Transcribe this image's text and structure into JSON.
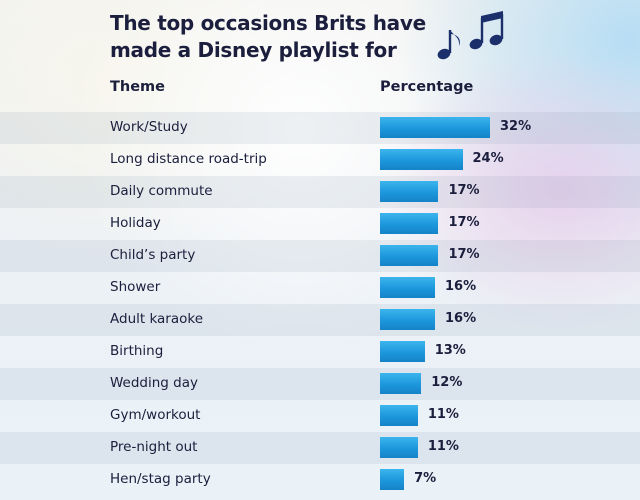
{
  "header": {
    "title_line1": "The top occasions Brits have",
    "title_line2": "made a Disney playlist for",
    "col_theme": "Theme",
    "col_percentage": "Percentage",
    "decoration_icon": "music-notes-icon"
  },
  "colors": {
    "bar": "#1d97dc",
    "text": "#1b1e3c",
    "note": "#1b2f6b"
  },
  "chart_data": {
    "type": "bar",
    "orientation": "horizontal",
    "title": "The top occasions Brits have made a Disney playlist for",
    "xlabel": "Percentage",
    "ylabel": "Theme",
    "categories": [
      "Work/Study",
      "Long distance road-trip",
      "Daily commute",
      "Holiday",
      "Child’s party",
      "Shower",
      "Adult karaoke",
      "Birthing",
      "Wedding day",
      "Gym/workout",
      "Pre-night out",
      "Hen/stag party"
    ],
    "values": [
      32,
      24,
      17,
      17,
      17,
      16,
      16,
      13,
      12,
      11,
      11,
      7
    ],
    "value_labels": [
      "32%",
      "24%",
      "17%",
      "17%",
      "17%",
      "16%",
      "16%",
      "13%",
      "12%",
      "11%",
      "11%",
      "7%"
    ],
    "xlim": [
      0,
      32
    ],
    "grid": false,
    "legend": "none"
  }
}
